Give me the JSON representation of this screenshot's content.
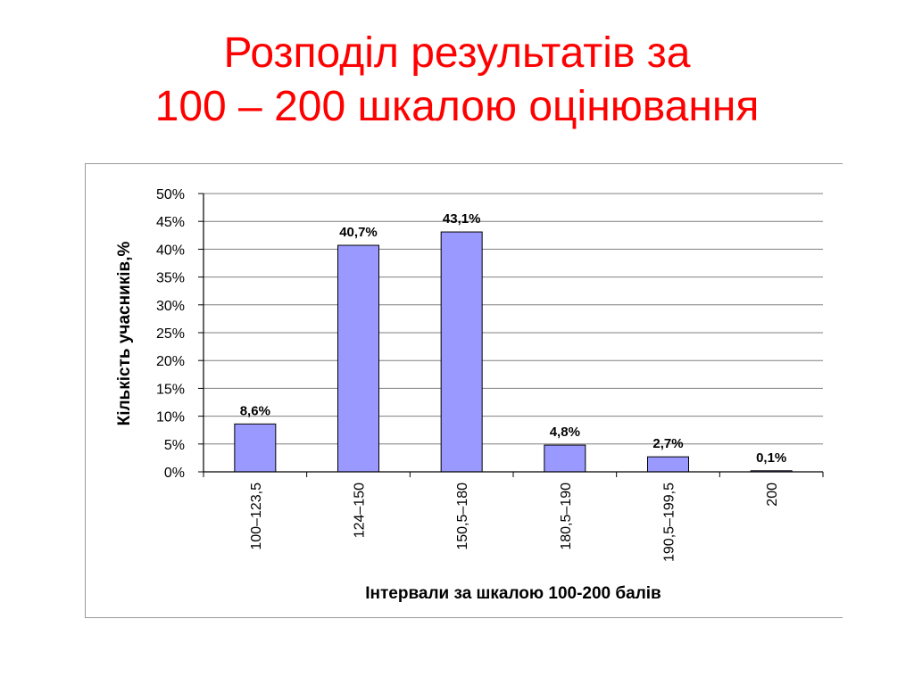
{
  "slide": {
    "title_line1": "Розподіл результатів за",
    "title_line2": "100 – 200 шкалою оцінювання"
  },
  "colors": {
    "title": "#ff0000",
    "bar_fill": "#9999ff",
    "bar_stroke": "#000000",
    "grid": "#7f7f7f",
    "text": "#000000"
  },
  "chart_data": {
    "type": "bar",
    "title": "",
    "xlabel": "Інтервали за шкалою 100-200 балів",
    "ylabel": "Кількість учасників,%",
    "categories": [
      "100–123,5",
      "124–150",
      "150,5–180",
      "180,5–190",
      "190,5–199,5",
      "200"
    ],
    "values": [
      8.6,
      40.7,
      43.1,
      4.8,
      2.7,
      0.1
    ],
    "value_labels": [
      "8,6%",
      "40,7%",
      "43,1%",
      "4,8%",
      "2,7%",
      "0,1%"
    ],
    "ylim": [
      0,
      50
    ],
    "yticks": [
      0,
      5,
      10,
      15,
      20,
      25,
      30,
      35,
      40,
      45,
      50
    ],
    "ytick_labels": [
      "0%",
      "5%",
      "10%",
      "15%",
      "20%",
      "25%",
      "30%",
      "35%",
      "40%",
      "45%",
      "50%"
    ],
    "grid": true,
    "legend": "none"
  }
}
